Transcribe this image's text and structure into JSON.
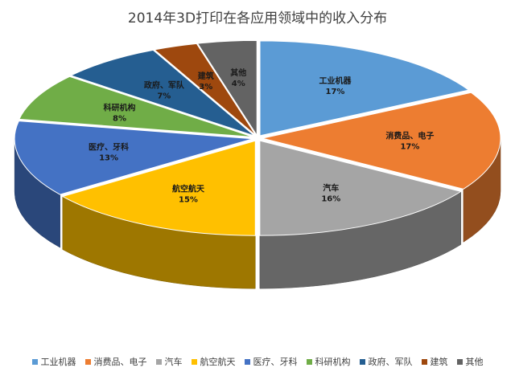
{
  "chart_data": {
    "type": "pie",
    "title": "2014年3D打印在各应用领域中的收入分布",
    "categories": [
      "工业机器",
      "消费品、电子",
      "汽车",
      "航空航天",
      "医疗、牙科",
      "科研机构",
      "政府、军队",
      "建筑",
      "其他"
    ],
    "values": [
      17,
      17,
      16,
      15,
      13,
      8,
      7,
      3,
      4
    ],
    "value_labels": [
      "17%",
      "17%",
      "16%",
      "15%",
      "13%",
      "8%",
      "7%",
      "3%",
      "4%"
    ],
    "colors": [
      "#5B9BD5",
      "#ED7D31",
      "#A5A5A5",
      "#FFC000",
      "#4472C4",
      "#70AD47",
      "#255E91",
      "#9E480E",
      "#636363"
    ],
    "style": "3d-exploded",
    "legend_position": "bottom"
  }
}
